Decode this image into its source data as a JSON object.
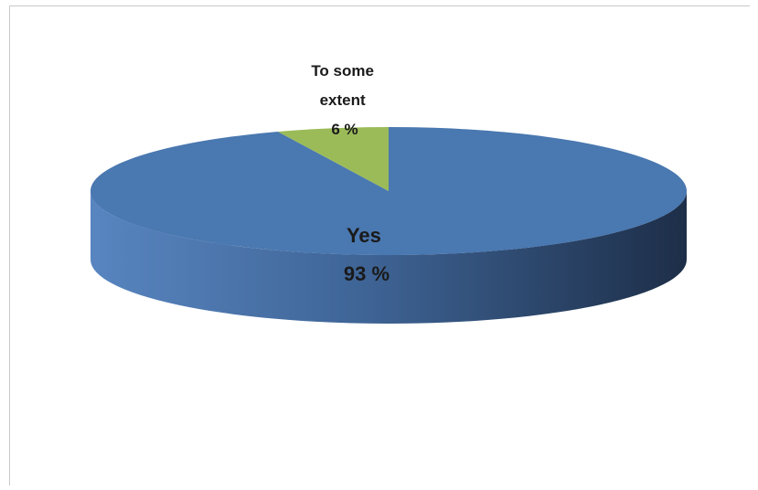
{
  "chart_data": {
    "type": "pie",
    "style": "3d",
    "title": "",
    "start_angle_deg": 90,
    "direction": "clockwise",
    "slices": [
      {
        "key": "yes",
        "label": "Yes",
        "value": 93,
        "value_text": "93 %",
        "color": "#4a78b0",
        "side_light": "#5885c0",
        "side_dark": "#1d2e48"
      },
      {
        "key": "to_some_extent",
        "label_lines": [
          "To some",
          "extent"
        ],
        "value": 6,
        "value_text": "6 %",
        "color": "#9bbb59",
        "side_light": "#9bbb59",
        "side_dark": "#6f8a3c"
      }
    ],
    "legend": "none"
  }
}
